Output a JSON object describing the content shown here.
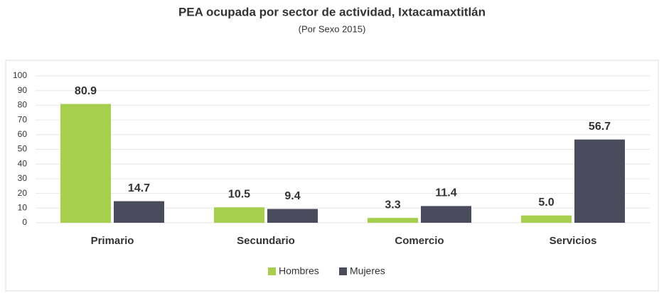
{
  "chart_data": {
    "type": "bar",
    "title": "PEA ocupada por sector de actividad, Ixtacamaxtitlán",
    "subtitle": "(Por Sexo 2015)",
    "categories": [
      "Primario",
      "Secundario",
      "Comercio",
      "Servicios"
    ],
    "series": [
      {
        "name": "Hombres",
        "color": "#a5cf4c",
        "values": [
          80.9,
          10.5,
          3.3,
          5.0
        ],
        "value_labels": [
          "80.9",
          "10.5",
          "3.3",
          "5.0"
        ]
      },
      {
        "name": "Mujeres",
        "color": "#4a4c5e",
        "values": [
          14.7,
          9.4,
          11.4,
          56.7
        ],
        "value_labels": [
          "14.7",
          "9.4",
          "11.4",
          "56.7"
        ]
      }
    ],
    "ylim": [
      0,
      100
    ],
    "yticks": [
      0,
      10,
      20,
      30,
      40,
      50,
      60,
      70,
      80,
      90,
      100
    ],
    "grid": true,
    "legend": "bottom"
  }
}
